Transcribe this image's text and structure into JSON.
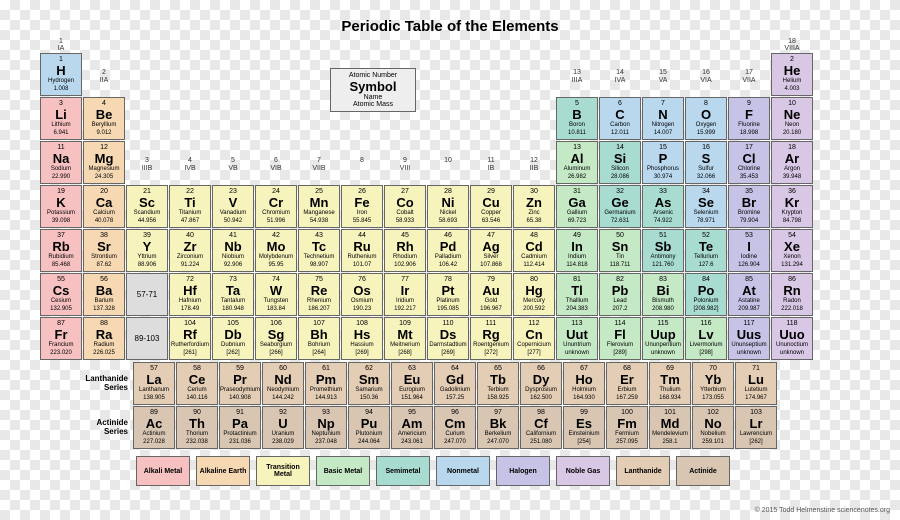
{
  "title": "Periodic Table of the Elements",
  "credit": "© 2015 Todd Helmenstine  sciencenotes.org",
  "key": {
    "a": "Atomic Number",
    "b": "Symbol",
    "c": "Name",
    "d": "Atomic Mass"
  },
  "group_headers": [
    {
      "col": 1,
      "t": "1",
      "b": "IA"
    },
    {
      "col": 2,
      "t": "2",
      "b": "IIA"
    },
    {
      "col": 3,
      "t": "3",
      "b": "IIIB"
    },
    {
      "col": 4,
      "t": "4",
      "b": "IVB"
    },
    {
      "col": 5,
      "t": "5",
      "b": "VB"
    },
    {
      "col": 6,
      "t": "6",
      "b": "VIB"
    },
    {
      "col": 7,
      "t": "7",
      "b": "VIIB"
    },
    {
      "col": 8,
      "t": "8",
      "b": ""
    },
    {
      "col": 9,
      "t": "9",
      "b": "VIII"
    },
    {
      "col": 10,
      "t": "10",
      "b": ""
    },
    {
      "col": 11,
      "t": "11",
      "b": "IB"
    },
    {
      "col": 12,
      "t": "12",
      "b": "IIB"
    },
    {
      "col": 13,
      "t": "13",
      "b": "IIIA"
    },
    {
      "col": 14,
      "t": "14",
      "b": "IVA"
    },
    {
      "col": 15,
      "t": "15",
      "b": "VA"
    },
    {
      "col": 16,
      "t": "16",
      "b": "VIA"
    },
    {
      "col": 17,
      "t": "17",
      "b": "VIIA"
    },
    {
      "col": 18,
      "t": "18",
      "b": "VIIIA"
    }
  ],
  "series_labels": {
    "lan": "Lanthanide Series",
    "act": "Actinide Series"
  },
  "categories": {
    "alkali": {
      "name": "Alkali Metal",
      "color": "#f7c1c1"
    },
    "alkaline": {
      "name": "Alkaline Earth",
      "color": "#f6d9b3"
    },
    "transition": {
      "name": "Transition Metal",
      "color": "#f7f3bd"
    },
    "basic": {
      "name": "Basic Metal",
      "color": "#c5e8c5"
    },
    "semimetal": {
      "name": "Semimetal",
      "color": "#a9dcd0"
    },
    "nonmetal": {
      "name": "Nonmetal",
      "color": "#b9d8ee"
    },
    "halogen": {
      "name": "Halogen",
      "color": "#c7c3e6"
    },
    "noble": {
      "name": "Noble Gas",
      "color": "#d9c7e6"
    },
    "lanthanide": {
      "name": "Lanthanide",
      "color": "#e4cdb5"
    },
    "actinide": {
      "name": "Actinide",
      "color": "#d8c6b3"
    }
  },
  "legend_order": [
    "alkali",
    "alkaline",
    "transition",
    "basic",
    "semimetal",
    "nonmetal",
    "halogen",
    "noble",
    "lanthanide",
    "actinide"
  ],
  "ranges": [
    {
      "row": 6,
      "col": 3,
      "text": "57-71"
    },
    {
      "row": 7,
      "col": 3,
      "text": "89-103"
    }
  ],
  "elements": [
    {
      "n": 1,
      "s": "H",
      "name": "Hydrogen",
      "m": "1.008",
      "r": 1,
      "c": 1,
      "cat": "nonmetal"
    },
    {
      "n": 2,
      "s": "He",
      "name": "Helium",
      "m": "4.003",
      "r": 1,
      "c": 18,
      "cat": "noble"
    },
    {
      "n": 3,
      "s": "Li",
      "name": "Lithium",
      "m": "6.941",
      "r": 2,
      "c": 1,
      "cat": "alkali"
    },
    {
      "n": 4,
      "s": "Be",
      "name": "Beryllium",
      "m": "9.012",
      "r": 2,
      "c": 2,
      "cat": "alkaline"
    },
    {
      "n": 5,
      "s": "B",
      "name": "Boron",
      "m": "10.811",
      "r": 2,
      "c": 13,
      "cat": "semimetal"
    },
    {
      "n": 6,
      "s": "C",
      "name": "Carbon",
      "m": "12.011",
      "r": 2,
      "c": 14,
      "cat": "nonmetal"
    },
    {
      "n": 7,
      "s": "N",
      "name": "Nitrogen",
      "m": "14.007",
      "r": 2,
      "c": 15,
      "cat": "nonmetal"
    },
    {
      "n": 8,
      "s": "O",
      "name": "Oxygen",
      "m": "15.999",
      "r": 2,
      "c": 16,
      "cat": "nonmetal"
    },
    {
      "n": 9,
      "s": "F",
      "name": "Fluorine",
      "m": "18.998",
      "r": 2,
      "c": 17,
      "cat": "halogen"
    },
    {
      "n": 10,
      "s": "Ne",
      "name": "Neon",
      "m": "20.180",
      "r": 2,
      "c": 18,
      "cat": "noble"
    },
    {
      "n": 11,
      "s": "Na",
      "name": "Sodium",
      "m": "22.990",
      "r": 3,
      "c": 1,
      "cat": "alkali"
    },
    {
      "n": 12,
      "s": "Mg",
      "name": "Magnesium",
      "m": "24.305",
      "r": 3,
      "c": 2,
      "cat": "alkaline"
    },
    {
      "n": 13,
      "s": "Al",
      "name": "Aluminum",
      "m": "26.982",
      "r": 3,
      "c": 13,
      "cat": "basic"
    },
    {
      "n": 14,
      "s": "Si",
      "name": "Silicon",
      "m": "28.086",
      "r": 3,
      "c": 14,
      "cat": "semimetal"
    },
    {
      "n": 15,
      "s": "P",
      "name": "Phosphorus",
      "m": "30.974",
      "r": 3,
      "c": 15,
      "cat": "nonmetal"
    },
    {
      "n": 16,
      "s": "S",
      "name": "Sulfur",
      "m": "32.066",
      "r": 3,
      "c": 16,
      "cat": "nonmetal"
    },
    {
      "n": 17,
      "s": "Cl",
      "name": "Chlorine",
      "m": "35.453",
      "r": 3,
      "c": 17,
      "cat": "halogen"
    },
    {
      "n": 18,
      "s": "Ar",
      "name": "Argon",
      "m": "39.948",
      "r": 3,
      "c": 18,
      "cat": "noble"
    },
    {
      "n": 19,
      "s": "K",
      "name": "Potassium",
      "m": "39.098",
      "r": 4,
      "c": 1,
      "cat": "alkali"
    },
    {
      "n": 20,
      "s": "Ca",
      "name": "Calcium",
      "m": "40.078",
      "r": 4,
      "c": 2,
      "cat": "alkaline"
    },
    {
      "n": 21,
      "s": "Sc",
      "name": "Scandium",
      "m": "44.956",
      "r": 4,
      "c": 3,
      "cat": "transition"
    },
    {
      "n": 22,
      "s": "Ti",
      "name": "Titanium",
      "m": "47.867",
      "r": 4,
      "c": 4,
      "cat": "transition"
    },
    {
      "n": 23,
      "s": "V",
      "name": "Vanadium",
      "m": "50.942",
      "r": 4,
      "c": 5,
      "cat": "transition"
    },
    {
      "n": 24,
      "s": "Cr",
      "name": "Chromium",
      "m": "51.996",
      "r": 4,
      "c": 6,
      "cat": "transition"
    },
    {
      "n": 25,
      "s": "Mn",
      "name": "Manganese",
      "m": "54.938",
      "r": 4,
      "c": 7,
      "cat": "transition"
    },
    {
      "n": 26,
      "s": "Fe",
      "name": "Iron",
      "m": "55.845",
      "r": 4,
      "c": 8,
      "cat": "transition"
    },
    {
      "n": 27,
      "s": "Co",
      "name": "Cobalt",
      "m": "58.933",
      "r": 4,
      "c": 9,
      "cat": "transition"
    },
    {
      "n": 28,
      "s": "Ni",
      "name": "Nickel",
      "m": "58.693",
      "r": 4,
      "c": 10,
      "cat": "transition"
    },
    {
      "n": 29,
      "s": "Cu",
      "name": "Copper",
      "m": "63.546",
      "r": 4,
      "c": 11,
      "cat": "transition"
    },
    {
      "n": 30,
      "s": "Zn",
      "name": "Zinc",
      "m": "65.38",
      "r": 4,
      "c": 12,
      "cat": "transition"
    },
    {
      "n": 31,
      "s": "Ga",
      "name": "Gallium",
      "m": "69.723",
      "r": 4,
      "c": 13,
      "cat": "basic"
    },
    {
      "n": 32,
      "s": "Ge",
      "name": "Germanium",
      "m": "72.631",
      "r": 4,
      "c": 14,
      "cat": "semimetal"
    },
    {
      "n": 33,
      "s": "As",
      "name": "Arsenic",
      "m": "74.922",
      "r": 4,
      "c": 15,
      "cat": "semimetal"
    },
    {
      "n": 34,
      "s": "Se",
      "name": "Selenium",
      "m": "78.971",
      "r": 4,
      "c": 16,
      "cat": "nonmetal"
    },
    {
      "n": 35,
      "s": "Br",
      "name": "Bromine",
      "m": "79.904",
      "r": 4,
      "c": 17,
      "cat": "halogen"
    },
    {
      "n": 36,
      "s": "Kr",
      "name": "Krypton",
      "m": "84.798",
      "r": 4,
      "c": 18,
      "cat": "noble"
    },
    {
      "n": 37,
      "s": "Rb",
      "name": "Rubidium",
      "m": "85.468",
      "r": 5,
      "c": 1,
      "cat": "alkali"
    },
    {
      "n": 38,
      "s": "Sr",
      "name": "Strontium",
      "m": "87.62",
      "r": 5,
      "c": 2,
      "cat": "alkaline"
    },
    {
      "n": 39,
      "s": "Y",
      "name": "Yttrium",
      "m": "88.906",
      "r": 5,
      "c": 3,
      "cat": "transition"
    },
    {
      "n": 40,
      "s": "Zr",
      "name": "Zirconium",
      "m": "91.224",
      "r": 5,
      "c": 4,
      "cat": "transition"
    },
    {
      "n": 41,
      "s": "Nb",
      "name": "Niobium",
      "m": "92.906",
      "r": 5,
      "c": 5,
      "cat": "transition"
    },
    {
      "n": 42,
      "s": "Mo",
      "name": "Molybdenum",
      "m": "95.95",
      "r": 5,
      "c": 6,
      "cat": "transition"
    },
    {
      "n": 43,
      "s": "Tc",
      "name": "Technetium",
      "m": "98.907",
      "r": 5,
      "c": 7,
      "cat": "transition"
    },
    {
      "n": 44,
      "s": "Ru",
      "name": "Ruthenium",
      "m": "101.07",
      "r": 5,
      "c": 8,
      "cat": "transition"
    },
    {
      "n": 45,
      "s": "Rh",
      "name": "Rhodium",
      "m": "102.906",
      "r": 5,
      "c": 9,
      "cat": "transition"
    },
    {
      "n": 46,
      "s": "Pd",
      "name": "Palladium",
      "m": "106.42",
      "r": 5,
      "c": 10,
      "cat": "transition"
    },
    {
      "n": 47,
      "s": "Ag",
      "name": "Silver",
      "m": "107.868",
      "r": 5,
      "c": 11,
      "cat": "transition"
    },
    {
      "n": 48,
      "s": "Cd",
      "name": "Cadmium",
      "m": "112.414",
      "r": 5,
      "c": 12,
      "cat": "transition"
    },
    {
      "n": 49,
      "s": "In",
      "name": "Indium",
      "m": "114.818",
      "r": 5,
      "c": 13,
      "cat": "basic"
    },
    {
      "n": 50,
      "s": "Sn",
      "name": "Tin",
      "m": "118.711",
      "r": 5,
      "c": 14,
      "cat": "basic"
    },
    {
      "n": 51,
      "s": "Sb",
      "name": "Antimony",
      "m": "121.760",
      "r": 5,
      "c": 15,
      "cat": "semimetal"
    },
    {
      "n": 52,
      "s": "Te",
      "name": "Tellurium",
      "m": "127.6",
      "r": 5,
      "c": 16,
      "cat": "semimetal"
    },
    {
      "n": 53,
      "s": "I",
      "name": "Iodine",
      "m": "126.904",
      "r": 5,
      "c": 17,
      "cat": "halogen"
    },
    {
      "n": 54,
      "s": "Xe",
      "name": "Xenon",
      "m": "131.294",
      "r": 5,
      "c": 18,
      "cat": "noble"
    },
    {
      "n": 55,
      "s": "Cs",
      "name": "Cesium",
      "m": "132.905",
      "r": 6,
      "c": 1,
      "cat": "alkali"
    },
    {
      "n": 56,
      "s": "Ba",
      "name": "Barium",
      "m": "137.328",
      "r": 6,
      "c": 2,
      "cat": "alkaline"
    },
    {
      "n": 72,
      "s": "Hf",
      "name": "Hafnium",
      "m": "178.49",
      "r": 6,
      "c": 4,
      "cat": "transition"
    },
    {
      "n": 73,
      "s": "Ta",
      "name": "Tantalum",
      "m": "180.948",
      "r": 6,
      "c": 5,
      "cat": "transition"
    },
    {
      "n": 74,
      "s": "W",
      "name": "Tungsten",
      "m": "183.84",
      "r": 6,
      "c": 6,
      "cat": "transition"
    },
    {
      "n": 75,
      "s": "Re",
      "name": "Rhenium",
      "m": "186.207",
      "r": 6,
      "c": 7,
      "cat": "transition"
    },
    {
      "n": 76,
      "s": "Os",
      "name": "Osmium",
      "m": "190.23",
      "r": 6,
      "c": 8,
      "cat": "transition"
    },
    {
      "n": 77,
      "s": "Ir",
      "name": "Iridium",
      "m": "192.217",
      "r": 6,
      "c": 9,
      "cat": "transition"
    },
    {
      "n": 78,
      "s": "Pt",
      "name": "Platinum",
      "m": "195.085",
      "r": 6,
      "c": 10,
      "cat": "transition"
    },
    {
      "n": 79,
      "s": "Au",
      "name": "Gold",
      "m": "196.967",
      "r": 6,
      "c": 11,
      "cat": "transition"
    },
    {
      "n": 80,
      "s": "Hg",
      "name": "Mercury",
      "m": "200.592",
      "r": 6,
      "c": 12,
      "cat": "transition"
    },
    {
      "n": 81,
      "s": "Tl",
      "name": "Thallium",
      "m": "204.383",
      "r": 6,
      "c": 13,
      "cat": "basic"
    },
    {
      "n": 82,
      "s": "Pb",
      "name": "Lead",
      "m": "207.2",
      "r": 6,
      "c": 14,
      "cat": "basic"
    },
    {
      "n": 83,
      "s": "Bi",
      "name": "Bismuth",
      "m": "208.980",
      "r": 6,
      "c": 15,
      "cat": "basic"
    },
    {
      "n": 84,
      "s": "Po",
      "name": "Polonium",
      "m": "[208.982]",
      "r": 6,
      "c": 16,
      "cat": "semimetal"
    },
    {
      "n": 85,
      "s": "At",
      "name": "Astatine",
      "m": "209.987",
      "r": 6,
      "c": 17,
      "cat": "halogen"
    },
    {
      "n": 86,
      "s": "Rn",
      "name": "Radon",
      "m": "222.018",
      "r": 6,
      "c": 18,
      "cat": "noble"
    },
    {
      "n": 87,
      "s": "Fr",
      "name": "Francium",
      "m": "223.020",
      "r": 7,
      "c": 1,
      "cat": "alkali"
    },
    {
      "n": 88,
      "s": "Ra",
      "name": "Radium",
      "m": "226.025",
      "r": 7,
      "c": 2,
      "cat": "alkaline"
    },
    {
      "n": 104,
      "s": "Rf",
      "name": "Rutherfordium",
      "m": "[261]",
      "r": 7,
      "c": 4,
      "cat": "transition"
    },
    {
      "n": 105,
      "s": "Db",
      "name": "Dubnium",
      "m": "[262]",
      "r": 7,
      "c": 5,
      "cat": "transition"
    },
    {
      "n": 106,
      "s": "Sg",
      "name": "Seaborgium",
      "m": "[266]",
      "r": 7,
      "c": 6,
      "cat": "transition"
    },
    {
      "n": 107,
      "s": "Bh",
      "name": "Bohrium",
      "m": "[264]",
      "r": 7,
      "c": 7,
      "cat": "transition"
    },
    {
      "n": 108,
      "s": "Hs",
      "name": "Hassium",
      "m": "[269]",
      "r": 7,
      "c": 8,
      "cat": "transition"
    },
    {
      "n": 109,
      "s": "Mt",
      "name": "Meitnerium",
      "m": "[268]",
      "r": 7,
      "c": 9,
      "cat": "transition"
    },
    {
      "n": 110,
      "s": "Ds",
      "name": "Darmstadtium",
      "m": "[269]",
      "r": 7,
      "c": 10,
      "cat": "transition"
    },
    {
      "n": 111,
      "s": "Rg",
      "name": "Roentgenium",
      "m": "[272]",
      "r": 7,
      "c": 11,
      "cat": "transition"
    },
    {
      "n": 112,
      "s": "Cn",
      "name": "Copernicium",
      "m": "[277]",
      "r": 7,
      "c": 12,
      "cat": "transition"
    },
    {
      "n": 113,
      "s": "Uut",
      "name": "Ununtrium",
      "m": "unknown",
      "r": 7,
      "c": 13,
      "cat": "basic"
    },
    {
      "n": 114,
      "s": "Fl",
      "name": "Flerovium",
      "m": "[289]",
      "r": 7,
      "c": 14,
      "cat": "basic"
    },
    {
      "n": 115,
      "s": "Uup",
      "name": "Ununpentium",
      "m": "unknown",
      "r": 7,
      "c": 15,
      "cat": "basic"
    },
    {
      "n": 116,
      "s": "Lv",
      "name": "Livermorium",
      "m": "[298]",
      "r": 7,
      "c": 16,
      "cat": "basic"
    },
    {
      "n": 117,
      "s": "Uus",
      "name": "Ununseptium",
      "m": "unknown",
      "r": 7,
      "c": 17,
      "cat": "halogen"
    },
    {
      "n": 118,
      "s": "Uuo",
      "name": "Ununoctium",
      "m": "unknown",
      "r": 7,
      "c": 18,
      "cat": "noble"
    }
  ],
  "f_block": [
    {
      "n": 57,
      "s": "La",
      "name": "Lanthanum",
      "m": "138.905",
      "r": 1,
      "c": 1,
      "cat": "lanthanide"
    },
    {
      "n": 58,
      "s": "Ce",
      "name": "Cerium",
      "m": "140.116",
      "r": 1,
      "c": 2,
      "cat": "lanthanide"
    },
    {
      "n": 59,
      "s": "Pr",
      "name": "Praseodymium",
      "m": "140.908",
      "r": 1,
      "c": 3,
      "cat": "lanthanide"
    },
    {
      "n": 60,
      "s": "Nd",
      "name": "Neodymium",
      "m": "144.242",
      "r": 1,
      "c": 4,
      "cat": "lanthanide"
    },
    {
      "n": 61,
      "s": "Pm",
      "name": "Promethium",
      "m": "144.913",
      "r": 1,
      "c": 5,
      "cat": "lanthanide"
    },
    {
      "n": 62,
      "s": "Sm",
      "name": "Samarium",
      "m": "150.36",
      "r": 1,
      "c": 6,
      "cat": "lanthanide"
    },
    {
      "n": 63,
      "s": "Eu",
      "name": "Europium",
      "m": "151.964",
      "r": 1,
      "c": 7,
      "cat": "lanthanide"
    },
    {
      "n": 64,
      "s": "Gd",
      "name": "Gadolinium",
      "m": "157.25",
      "r": 1,
      "c": 8,
      "cat": "lanthanide"
    },
    {
      "n": 65,
      "s": "Tb",
      "name": "Terbium",
      "m": "158.925",
      "r": 1,
      "c": 9,
      "cat": "lanthanide"
    },
    {
      "n": 66,
      "s": "Dy",
      "name": "Dysprosium",
      "m": "162.500",
      "r": 1,
      "c": 10,
      "cat": "lanthanide"
    },
    {
      "n": 67,
      "s": "Ho",
      "name": "Holmium",
      "m": "164.930",
      "r": 1,
      "c": 11,
      "cat": "lanthanide"
    },
    {
      "n": 68,
      "s": "Er",
      "name": "Erbium",
      "m": "167.259",
      "r": 1,
      "c": 12,
      "cat": "lanthanide"
    },
    {
      "n": 69,
      "s": "Tm",
      "name": "Thulium",
      "m": "168.934",
      "r": 1,
      "c": 13,
      "cat": "lanthanide"
    },
    {
      "n": 70,
      "s": "Yb",
      "name": "Ytterbium",
      "m": "173.055",
      "r": 1,
      "c": 14,
      "cat": "lanthanide"
    },
    {
      "n": 71,
      "s": "Lu",
      "name": "Lutetium",
      "m": "174.967",
      "r": 1,
      "c": 15,
      "cat": "lanthanide"
    },
    {
      "n": 89,
      "s": "Ac",
      "name": "Actinium",
      "m": "227.028",
      "r": 2,
      "c": 1,
      "cat": "actinide"
    },
    {
      "n": 90,
      "s": "Th",
      "name": "Thorium",
      "m": "232.038",
      "r": 2,
      "c": 2,
      "cat": "actinide"
    },
    {
      "n": 91,
      "s": "Pa",
      "name": "Protactinium",
      "m": "231.036",
      "r": 2,
      "c": 3,
      "cat": "actinide"
    },
    {
      "n": 92,
      "s": "U",
      "name": "Uranium",
      "m": "238.029",
      "r": 2,
      "c": 4,
      "cat": "actinide"
    },
    {
      "n": 93,
      "s": "Np",
      "name": "Neptunium",
      "m": "237.048",
      "r": 2,
      "c": 5,
      "cat": "actinide"
    },
    {
      "n": 94,
      "s": "Pu",
      "name": "Plutonium",
      "m": "244.064",
      "r": 2,
      "c": 6,
      "cat": "actinide"
    },
    {
      "n": 95,
      "s": "Am",
      "name": "Americium",
      "m": "243.061",
      "r": 2,
      "c": 7,
      "cat": "actinide"
    },
    {
      "n": 96,
      "s": "Cm",
      "name": "Curium",
      "m": "247.070",
      "r": 2,
      "c": 8,
      "cat": "actinide"
    },
    {
      "n": 97,
      "s": "Bk",
      "name": "Berkelium",
      "m": "247.070",
      "r": 2,
      "c": 9,
      "cat": "actinide"
    },
    {
      "n": 98,
      "s": "Cf",
      "name": "Californium",
      "m": "251.080",
      "r": 2,
      "c": 10,
      "cat": "actinide"
    },
    {
      "n": 99,
      "s": "Es",
      "name": "Einsteinium",
      "m": "[254]",
      "r": 2,
      "c": 11,
      "cat": "actinide"
    },
    {
      "n": 100,
      "s": "Fm",
      "name": "Fermium",
      "m": "257.095",
      "r": 2,
      "c": 12,
      "cat": "actinide"
    },
    {
      "n": 101,
      "s": "Md",
      "name": "Mendelevium",
      "m": "258.1",
      "r": 2,
      "c": 13,
      "cat": "actinide"
    },
    {
      "n": 102,
      "s": "No",
      "name": "Nobelium",
      "m": "259.101",
      "r": 2,
      "c": 14,
      "cat": "actinide"
    },
    {
      "n": 103,
      "s": "Lr",
      "name": "Lawrencium",
      "m": "[262]",
      "r": 2,
      "c": 15,
      "cat": "actinide"
    }
  ]
}
